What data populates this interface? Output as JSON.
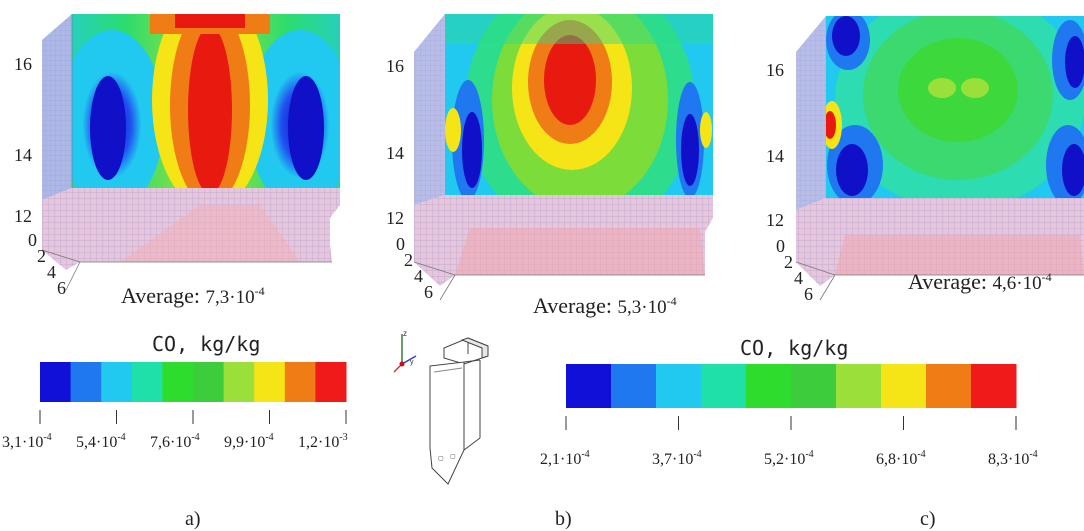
{
  "panels": [
    {
      "id": "a",
      "sublabel": "a)",
      "average_label": "Average:",
      "average_value": "7,3·10",
      "average_exp": "-4",
      "z_ticks": [
        "16",
        "14",
        "12"
      ],
      "y_ticks": [
        "0",
        "2",
        "4",
        "6"
      ]
    },
    {
      "id": "b",
      "sublabel": "b)",
      "average_label": "Average:",
      "average_value": "5,3·10",
      "average_exp": "-4",
      "z_ticks": [
        "16",
        "14",
        "12"
      ],
      "y_ticks": [
        "0",
        "2",
        "4",
        "6"
      ]
    },
    {
      "id": "c",
      "sublabel": "c)",
      "average_label": "Average:",
      "average_value": "4,6·10",
      "average_exp": "-4",
      "z_ticks": [
        "16",
        "14",
        "12"
      ],
      "y_ticks": [
        "0",
        "2",
        "4",
        "6"
      ]
    }
  ],
  "legends": [
    {
      "id": "legend-a",
      "title": "CO, kg/kg",
      "colors": [
        "#1010d8",
        "#1f78f0",
        "#21c8f0",
        "#1fe0a8",
        "#2ddc2d",
        "#3ccc3c",
        "#9be03a",
        "#f5e416",
        "#f07c16",
        "#f01a1a"
      ],
      "ticks": [
        {
          "base": "3,1·10",
          "exp": "-4"
        },
        {
          "base": "5,4·10",
          "exp": "-4"
        },
        {
          "base": "7,6·10",
          "exp": "-4"
        },
        {
          "base": "9,9·10",
          "exp": "-4"
        },
        {
          "base": "1,2·10",
          "exp": "-3"
        }
      ]
    },
    {
      "id": "legend-b",
      "title": "CO, kg/kg",
      "colors": [
        "#1010d8",
        "#1f78f0",
        "#21c8f0",
        "#1fe0a8",
        "#2ddc2d",
        "#3ccc3c",
        "#9be03a",
        "#f5e416",
        "#f07c16",
        "#f01a1a"
      ],
      "ticks": [
        {
          "base": "2,1·10",
          "exp": "-4"
        },
        {
          "base": "3,7·10",
          "exp": "-4"
        },
        {
          "base": "5,2·10",
          "exp": "-4"
        },
        {
          "base": "6,8·10",
          "exp": "-4"
        },
        {
          "base": "8,3·10",
          "exp": "-4"
        }
      ]
    }
  ],
  "colors": {
    "blue": "#1010d8",
    "red": "#f01a1a",
    "lattice": "#d8a8c8"
  },
  "icons": [
    "axis-triad-icon",
    "furnace-schematic-icon"
  ]
}
